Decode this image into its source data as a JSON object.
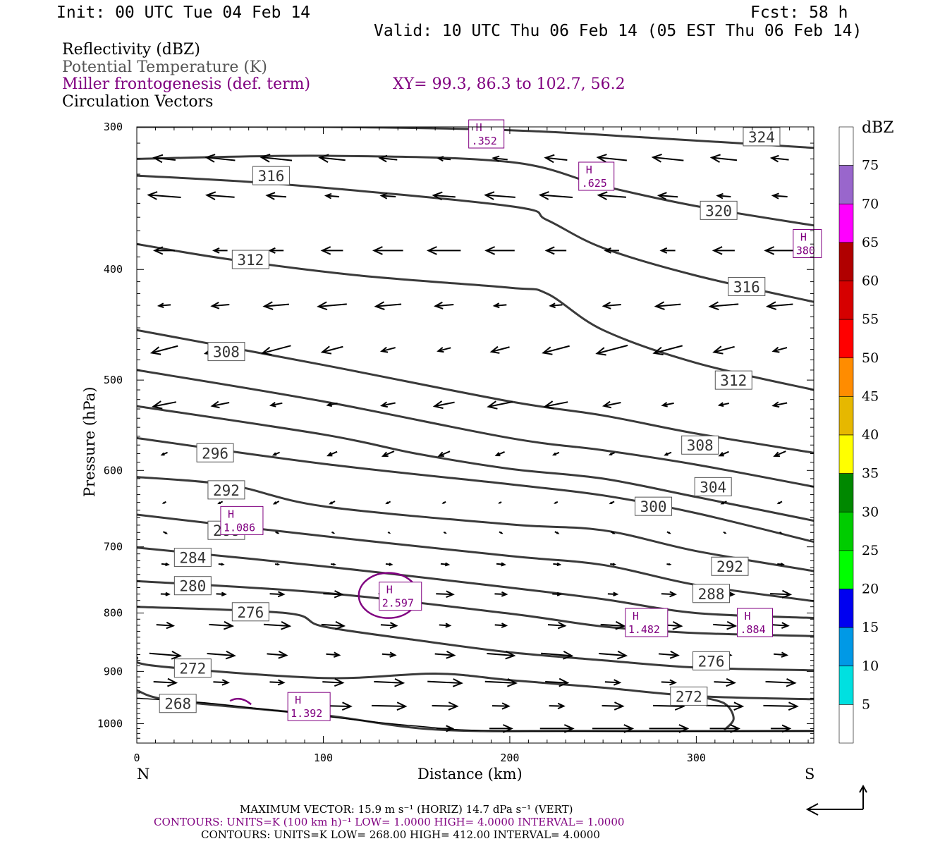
{
  "header": {
    "init": "Init: 00 UTC Tue 04 Feb 14",
    "fcst": "Fcst:   58 h",
    "valid": "Valid: 10 UTC Thu 06 Feb 14 (05 EST Thu 06 Feb 14)",
    "field1": "Reflectivity (dBZ)",
    "field2": "Potential Temperature (K)",
    "field3": "Miller frontogenesis (def. term)",
    "xy": "XY=  99.3, 86.3 to 102.7, 56.2",
    "field4": "Circulation Vectors"
  },
  "colors": {
    "theta": "#3a3a3a",
    "fronto": "#800080",
    "vectors": "#000000",
    "field2_text": "#555555"
  },
  "chart_data": {
    "type": "cross-section",
    "xlabel": "Distance (km)",
    "ylabel": "Pressure (hPa)",
    "xlim": [
      0,
      363
    ],
    "ylim": [
      1040,
      300
    ],
    "y_log": true,
    "x_ticks": [
      "0",
      "100",
      "200",
      "300"
    ],
    "y_ticks": [
      "300",
      "400",
      "500",
      "600",
      "700",
      "800",
      "900",
      "1000"
    ],
    "left_end_label": "N",
    "right_end_label": "S",
    "theta_contours": [
      {
        "value": "324",
        "points": [
          [
            0,
            300
          ],
          [
            100,
            300
          ],
          [
            200,
            302
          ],
          [
            280,
            307
          ],
          [
            363,
            313
          ]
        ]
      },
      {
        "value": "320",
        "points": [
          [
            0,
            320
          ],
          [
            100,
            318
          ],
          [
            200,
            322
          ],
          [
            250,
            338
          ],
          [
            300,
            352
          ],
          [
            363,
            366
          ]
        ]
      },
      {
        "value": "316",
        "points": [
          [
            0,
            331
          ],
          [
            80,
            337
          ],
          [
            200,
            352
          ],
          [
            220,
            362
          ],
          [
            250,
            383
          ],
          [
            300,
            405
          ],
          [
            363,
            427
          ]
        ]
      },
      {
        "value": "312",
        "points": [
          [
            0,
            380
          ],
          [
            50,
            392
          ],
          [
            120,
            405
          ],
          [
            200,
            415
          ],
          [
            220,
            420
          ],
          [
            250,
            452
          ],
          [
            300,
            483
          ],
          [
            363,
            510
          ]
        ]
      },
      {
        "value": "308",
        "points": [
          [
            0,
            452
          ],
          [
            100,
            485
          ],
          [
            200,
            522
          ],
          [
            250,
            537
          ],
          [
            300,
            557
          ],
          [
            363,
            579
          ]
        ]
      },
      {
        "value": "304",
        "points": [
          [
            0,
            490
          ],
          [
            100,
            522
          ],
          [
            200,
            562
          ],
          [
            250,
            576
          ],
          [
            300,
            593
          ],
          [
            363,
            620
          ]
        ]
      },
      {
        "value": "300",
        "points": [
          [
            0,
            527
          ],
          [
            100,
            558
          ],
          [
            150,
            580
          ],
          [
            200,
            598
          ],
          [
            250,
            610
          ],
          [
            300,
            633
          ],
          [
            363,
            664
          ]
        ]
      },
      {
        "value": "296",
        "points": [
          [
            0,
            562
          ],
          [
            100,
            592
          ],
          [
            200,
            617
          ],
          [
            250,
            631
          ],
          [
            300,
            654
          ],
          [
            363,
            693
          ]
        ]
      },
      {
        "value": "292",
        "points": [
          [
            0,
            608
          ],
          [
            50,
            618
          ],
          [
            100,
            645
          ],
          [
            200,
            669
          ],
          [
            250,
            677
          ],
          [
            300,
            706
          ],
          [
            363,
            735
          ]
        ]
      },
      {
        "value": "288",
        "points": [
          [
            0,
            656
          ],
          [
            100,
            685
          ],
          [
            200,
            713
          ],
          [
            250,
            726
          ],
          [
            300,
            756
          ],
          [
            363,
            781
          ]
        ]
      },
      {
        "value": "284",
        "points": [
          [
            0,
            701
          ],
          [
            100,
            728
          ],
          [
            200,
            760
          ],
          [
            250,
            778
          ],
          [
            300,
            800
          ],
          [
            363,
            808
          ]
        ]
      },
      {
        "value": "280",
        "points": [
          [
            0,
            750
          ],
          [
            100,
            768
          ],
          [
            200,
            801
          ],
          [
            250,
            822
          ],
          [
            300,
            833
          ],
          [
            363,
            838
          ]
        ]
      },
      {
        "value": "276",
        "points": [
          [
            0,
            790
          ],
          [
            80,
            800
          ],
          [
            100,
            822
          ],
          [
            150,
            845
          ],
          [
            200,
            866
          ],
          [
            250,
            880
          ],
          [
            300,
            893
          ],
          [
            363,
            898
          ]
        ]
      },
      {
        "value": "272",
        "points": [
          [
            0,
            875
          ],
          [
            10,
            890
          ],
          [
            100,
            912
          ],
          [
            160,
            904
          ],
          [
            200,
            916
          ],
          [
            250,
            930
          ],
          [
            300,
            946
          ],
          [
            363,
            952
          ]
        ]
      },
      {
        "value": "268",
        "points": [
          [
            0,
            935
          ],
          [
            20,
            955
          ],
          [
            100,
            983
          ],
          [
            160,
            1012
          ],
          [
            240,
            1015
          ],
          [
            363,
            1015
          ]
        ]
      }
    ],
    "theta_label_positions": [
      {
        "text": "324",
        "x": 335,
        "p": 306
      },
      {
        "text": "320",
        "x": 312,
        "p": 355
      },
      {
        "text": "316",
        "x": 72,
        "p": 331
      },
      {
        "text": "316",
        "x": 327,
        "p": 414
      },
      {
        "text": "312",
        "x": 61,
        "p": 392
      },
      {
        "text": "312",
        "x": 320,
        "p": 500
      },
      {
        "text": "308",
        "x": 48,
        "p": 472
      },
      {
        "text": "308",
        "x": 302,
        "p": 570
      },
      {
        "text": "304",
        "x": 309,
        "p": 620
      },
      {
        "text": "300",
        "x": 277,
        "p": 645
      },
      {
        "text": "296",
        "x": 42,
        "p": 579
      },
      {
        "text": "292",
        "x": 48,
        "p": 624
      },
      {
        "text": "292",
        "x": 318,
        "p": 728
      },
      {
        "text": "288",
        "x": 48,
        "p": 677
      },
      {
        "text": "288",
        "x": 308,
        "p": 769
      },
      {
        "text": "284",
        "x": 30,
        "p": 715
      },
      {
        "text": "280",
        "x": 30,
        "p": 757
      },
      {
        "text": "276",
        "x": 61,
        "p": 798
      },
      {
        "text": "276",
        "x": 308,
        "p": 881
      },
      {
        "text": "272",
        "x": 30,
        "p": 894
      },
      {
        "text": "272",
        "x": 296,
        "p": 946
      },
      {
        "text": "268",
        "x": 22,
        "p": 960
      }
    ],
    "frontogenesis_maxima": [
      {
        "label": "H",
        "value": ".352",
        "x": 181,
        "p": 303
      },
      {
        "label": "H",
        "value": ".625",
        "x": 240,
        "p": 330
      },
      {
        "label": "H",
        "value": "380",
        "x": 355,
        "p": 378
      },
      {
        "label": "H",
        "value": "1.086",
        "x": 48,
        "p": 661
      },
      {
        "label": "H",
        "value": "2.597",
        "x": 133,
        "p": 770
      },
      {
        "label": "H",
        "value": "1.482",
        "x": 265,
        "p": 812
      },
      {
        "label": "H",
        "value": ".884",
        "x": 325,
        "p": 812
      },
      {
        "label": "H",
        "value": "1.392",
        "x": 84,
        "p": 962
      }
    ],
    "colorbar": {
      "title": "dBZ",
      "levels": [
        "5",
        "10",
        "15",
        "20",
        "25",
        "30",
        "35",
        "40",
        "45",
        "50",
        "55",
        "60",
        "65",
        "70",
        "75"
      ],
      "colors": [
        "#ffffff",
        "#00e0e0",
        "#0099e6",
        "#0000f0",
        "#00ff00",
        "#00cc00",
        "#008800",
        "#ffff00",
        "#e6b800",
        "#ff8c00",
        "#ff0000",
        "#d60000",
        "#b00000",
        "#ff00ff",
        "#9966cc",
        "#ffffff"
      ]
    }
  },
  "footer": {
    "max_vector_line": "MAXIMUM VECTOR:  15.9 m s⁻¹ (HORIZ)          14.7 dPa s⁻¹ (VERT)",
    "contours_purple": "CONTOURS:  UNITS=K (100 km h)⁻¹  LOW=   1.0000       HIGH=   4.0000       INTERVAL=    1.0000",
    "contours_black": "CONTOURS:  UNITS=K  LOW=  268.00       HIGH=  412.00       INTERVAL=    4.0000"
  }
}
